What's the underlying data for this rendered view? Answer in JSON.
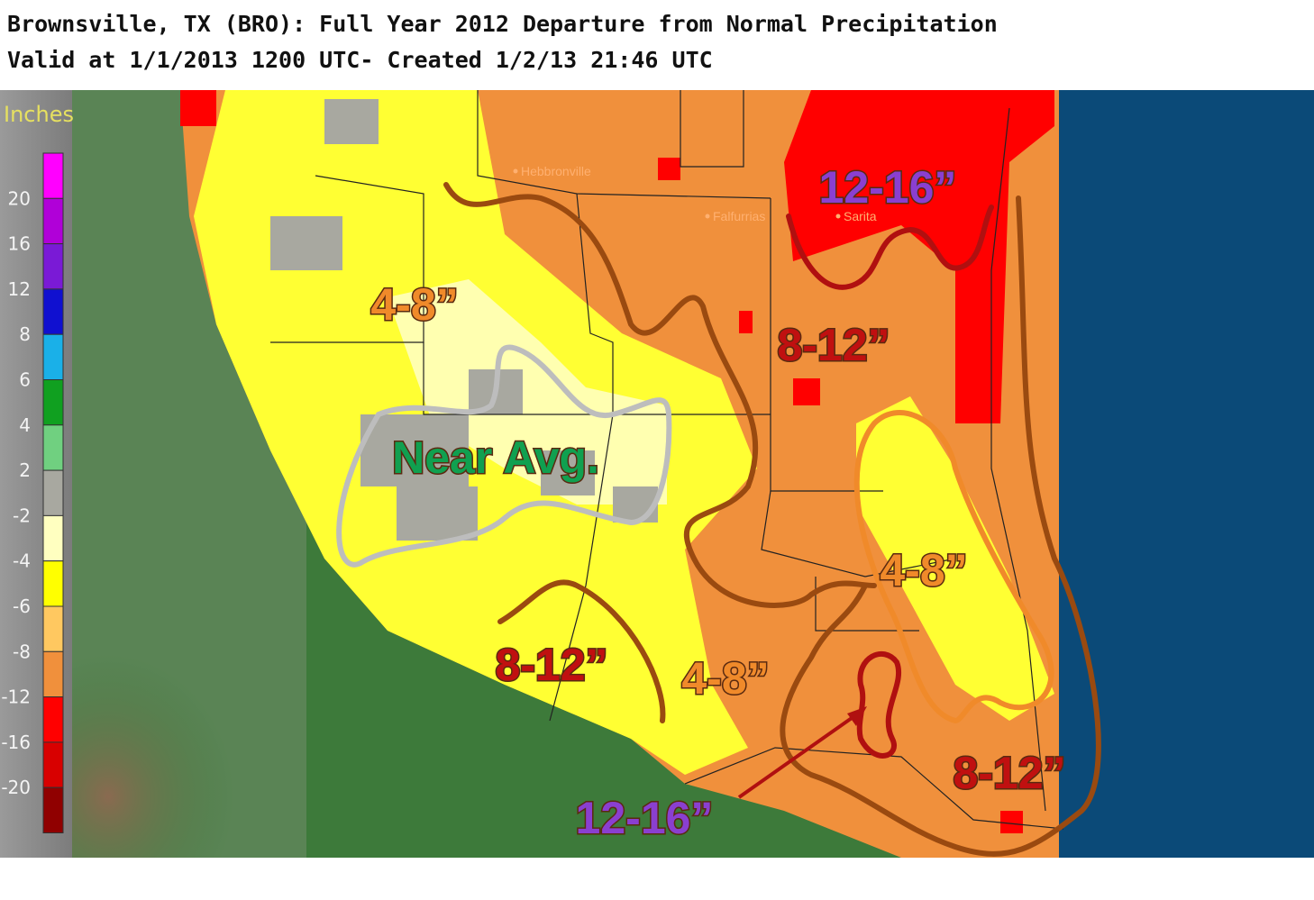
{
  "header": {
    "title": "Brownsville, TX (BRO): Full Year 2012 Departure from Normal Precipitation",
    "subtitle": "Valid at 1/1/2013 1200 UTC- Created 1/2/13 21:46 UTC"
  },
  "legend": {
    "title": "Inches",
    "labels": [
      "20",
      "16",
      "12",
      "8",
      "6",
      "4",
      "2",
      "-2",
      "-4",
      "-6",
      "-8",
      "-12",
      "-16",
      "-20"
    ],
    "colors": [
      "#ff00ff",
      "#b000d8",
      "#7a1ad6",
      "#1010d0",
      "#1ab0e8",
      "#10a020",
      "#70d080",
      "#a8a8a0",
      "#ffffc0",
      "#ffff00",
      "#ffc860",
      "#f0903c",
      "#ff0000",
      "#d80000",
      "#900000"
    ]
  },
  "places": [
    "Hebbronville",
    "Falfurrias",
    "Sarita"
  ],
  "annotations": [
    {
      "text": "12-16”",
      "color": "#8a3fd0"
    },
    {
      "text": "4-8”",
      "color": "#f08a2a"
    },
    {
      "text": "8-12”",
      "color": "#c01010"
    },
    {
      "text": "Near  Avg.",
      "color": "#10a050"
    },
    {
      "text": "4-8”",
      "color": "#f08a2a"
    },
    {
      "text": "8-12”",
      "color": "#c01010"
    },
    {
      "text": "4-8”",
      "color": "#f08a2a"
    },
    {
      "text": "12-16”",
      "color": "#8a3fd0"
    },
    {
      "text": "8-12”",
      "color": "#c01010"
    }
  ]
}
